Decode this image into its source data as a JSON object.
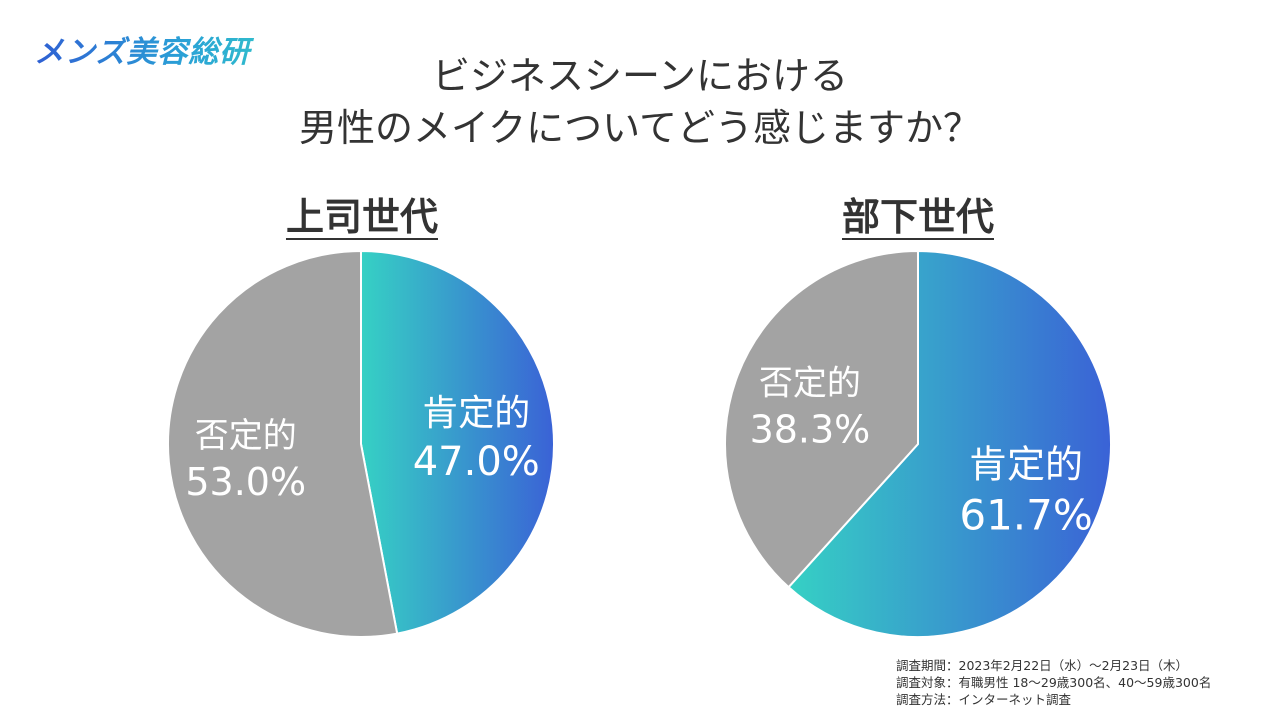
{
  "brand": {
    "name": "メンズ美容総研"
  },
  "title": {
    "line1": "ビジネスシーンにおける",
    "line2": "男性のメイクについてどう感じますか？"
  },
  "colors": {
    "gray": "#a3a3a3",
    "gradient_start": "#36d1c4",
    "gradient_end": "#3a62d6",
    "text": "#333333"
  },
  "chart_data": [
    {
      "type": "pie",
      "title": "上司世代",
      "slices": [
        {
          "label": "肯定的",
          "value": 47.0,
          "value_label": "47.0%",
          "color": "gradient"
        },
        {
          "label": "否定的",
          "value": 53.0,
          "value_label": "53.0%",
          "color": "#a3a3a3"
        }
      ]
    },
    {
      "type": "pie",
      "title": "部下世代",
      "slices": [
        {
          "label": "肯定的",
          "value": 61.7,
          "value_label": "61.7%",
          "color": "gradient"
        },
        {
          "label": "否定的",
          "value": 38.3,
          "value_label": "38.3%",
          "color": "#a3a3a3"
        }
      ]
    }
  ],
  "footnote": {
    "period": "調査期間：2023年2月22日（水）〜2月23日（木）",
    "target": "調査対象：有職男性 18〜29歳300名、40〜59歳300名",
    "method": "調査方法：インターネット調査"
  }
}
